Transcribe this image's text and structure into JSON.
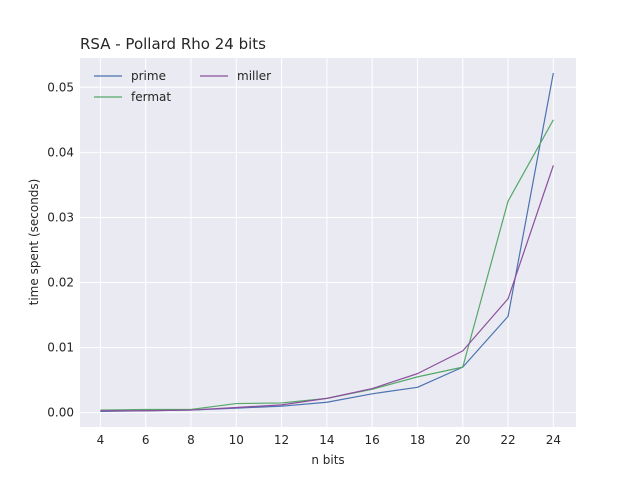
{
  "chart_data": {
    "type": "line",
    "title": "RSA - Pollard Rho 24 bits",
    "xlabel": "n bits",
    "ylabel": "time spent (seconds)",
    "x": [
      4,
      6,
      8,
      10,
      12,
      14,
      16,
      18,
      20,
      22,
      24
    ],
    "xticks": [
      "4",
      "6",
      "8",
      "10",
      "12",
      "14",
      "16",
      "18",
      "20",
      "22",
      "24"
    ],
    "yticks": [
      "0.00",
      "0.01",
      "0.02",
      "0.03",
      "0.04",
      "0.05"
    ],
    "xlim": [
      3.1,
      25.0
    ],
    "ylim": [
      -0.0022,
      0.0545
    ],
    "grid": true,
    "legend": "top-left",
    "series": [
      {
        "name": "prime",
        "color": "#4c72b0",
        "values": [
          0.0002,
          0.0003,
          0.0004,
          0.0007,
          0.001,
          0.0016,
          0.0029,
          0.0039,
          0.007,
          0.0148,
          0.0522
        ]
      },
      {
        "name": "fermat",
        "color": "#55a868",
        "values": [
          0.0004,
          0.0005,
          0.0005,
          0.0014,
          0.0015,
          0.0022,
          0.0036,
          0.0055,
          0.007,
          0.0325,
          0.045
        ]
      },
      {
        "name": "miller",
        "color": "#8c4f9f",
        "values": [
          0.0003,
          0.0003,
          0.0004,
          0.0008,
          0.0012,
          0.0022,
          0.0037,
          0.006,
          0.0095,
          0.0175,
          0.038
        ]
      }
    ]
  }
}
